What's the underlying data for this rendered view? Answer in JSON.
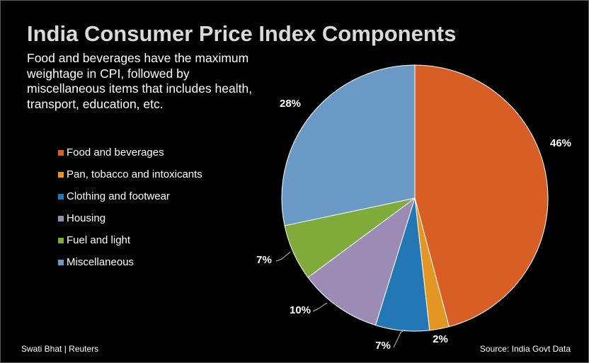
{
  "title": "India Consumer Price Index Components",
  "subtitle": "Food and beverages have the maximum weightage in CPI, followed by miscellaneous items that includes health, transport, education, etc.",
  "footer": {
    "credit": "Swati Bhat | Reuters",
    "source": "Source: India Govt Data"
  },
  "chart_data": {
    "type": "pie",
    "categories": [
      "Food and beverages",
      "Pan, tobacco and intoxicants",
      "Clothing and footwear",
      "Housing",
      "Fuel and light",
      "Miscellaneous"
    ],
    "values": [
      45.86,
      2.38,
      6.53,
      10.07,
      6.84,
      28.32
    ],
    "data_labels": [
      "46%",
      "2%",
      "7%",
      "10%",
      "7%",
      "28%"
    ],
    "colors": [
      "#d75f25",
      "#e39624",
      "#2277b4",
      "#9b8bb5",
      "#7fab3b",
      "#6b99c5"
    ],
    "legend_position": "left",
    "start_angle": "12 o'clock, clockwise"
  }
}
